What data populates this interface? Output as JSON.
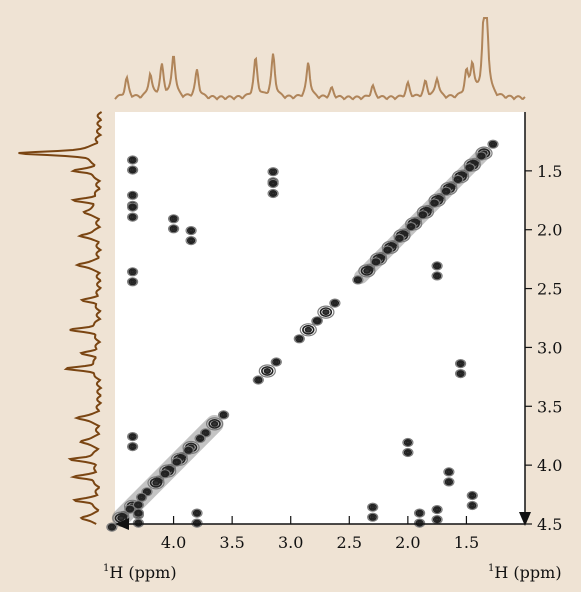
{
  "chart_data": {
    "type": "heatmap",
    "subtype": "2D NMR COSY contour spectrum with 1D projections",
    "title": "",
    "xlabel": "1H (ppm)",
    "ylabel": "1H (ppm)",
    "x_axis": {
      "label_super": "1",
      "label_main": "H (ppm)",
      "range_ppm": [
        4.5,
        1.0
      ],
      "reversed": true,
      "ticks": [
        4.0,
        3.5,
        3.0,
        2.5,
        2.0,
        1.5
      ],
      "tick_labels": [
        "4.0",
        "3.5",
        "3.0",
        "2.5",
        "2.0",
        "1.5"
      ]
    },
    "y_axis": {
      "label_super": "1",
      "label_main": "H (ppm)",
      "range_ppm": [
        1.0,
        4.5
      ],
      "position": "right",
      "ticks": [
        1.5,
        2.0,
        2.5,
        3.0,
        3.5,
        4.0,
        4.5
      ],
      "tick_labels": [
        "1.5",
        "2.0",
        "2.5",
        "3.0",
        "3.5",
        "4.0",
        "4.5"
      ]
    },
    "grid": false,
    "colors": {
      "background": "#efe3d4",
      "plot_area": "#ffffff",
      "top_projection": "#b0855a",
      "left_projection": "#7a4512",
      "contours": "#222222",
      "axis": "#111111"
    },
    "diagonal_peaks_ppm": [
      1.35,
      1.45,
      1.55,
      1.65,
      1.75,
      1.85,
      1.95,
      2.05,
      2.15,
      2.25,
      2.35,
      2.7,
      2.85,
      3.2,
      3.65,
      3.85,
      3.95,
      4.05,
      4.15,
      4.35,
      4.45
    ],
    "cross_peaks_ppm": [
      [
        4.35,
        1.45
      ],
      [
        4.35,
        1.75
      ],
      [
        4.35,
        1.85
      ],
      [
        4.35,
        2.4
      ],
      [
        4.35,
        3.8
      ],
      [
        4.3,
        4.38
      ],
      [
        4.3,
        4.45
      ],
      [
        3.8,
        4.45
      ],
      [
        4.0,
        1.95
      ],
      [
        3.85,
        2.05
      ],
      [
        3.15,
        1.55
      ],
      [
        3.15,
        1.65
      ],
      [
        1.45,
        4.3
      ],
      [
        1.75,
        4.42
      ],
      [
        1.9,
        4.45
      ],
      [
        2.3,
        4.4
      ],
      [
        1.55,
        3.18
      ],
      [
        1.75,
        2.35
      ],
      [
        2.0,
        3.85
      ],
      [
        1.65,
        4.1
      ]
    ],
    "projection_top_peaks_ppm": [
      {
        "ppm": 1.33,
        "intensity": 1.0
      },
      {
        "ppm": 1.35,
        "intensity": 0.8
      },
      {
        "ppm": 1.45,
        "intensity": 0.4
      },
      {
        "ppm": 1.5,
        "intensity": 0.3
      },
      {
        "ppm": 1.75,
        "intensity": 0.25
      },
      {
        "ppm": 1.85,
        "intensity": 0.2
      },
      {
        "ppm": 2.0,
        "intensity": 0.18
      },
      {
        "ppm": 2.3,
        "intensity": 0.15
      },
      {
        "ppm": 2.65,
        "intensity": 0.12
      },
      {
        "ppm": 2.85,
        "intensity": 0.45
      },
      {
        "ppm": 3.15,
        "intensity": 0.55
      },
      {
        "ppm": 3.3,
        "intensity": 0.5
      },
      {
        "ppm": 3.8,
        "intensity": 0.35
      },
      {
        "ppm": 4.0,
        "intensity": 0.55
      },
      {
        "ppm": 4.1,
        "intensity": 0.4
      },
      {
        "ppm": 4.2,
        "intensity": 0.3
      },
      {
        "ppm": 4.4,
        "intensity": 0.25
      }
    ],
    "projection_left_peaks_ppm": [
      {
        "ppm": 1.35,
        "intensity": 1.0
      },
      {
        "ppm": 1.5,
        "intensity": 0.3
      },
      {
        "ppm": 1.75,
        "intensity": 0.3
      },
      {
        "ppm": 1.85,
        "intensity": 0.2
      },
      {
        "ppm": 2.05,
        "intensity": 0.25
      },
      {
        "ppm": 2.3,
        "intensity": 0.3
      },
      {
        "ppm": 2.6,
        "intensity": 0.2
      },
      {
        "ppm": 2.85,
        "intensity": 0.35
      },
      {
        "ppm": 3.05,
        "intensity": 0.2
      },
      {
        "ppm": 3.18,
        "intensity": 0.4
      },
      {
        "ppm": 3.6,
        "intensity": 0.3
      },
      {
        "ppm": 3.8,
        "intensity": 0.25
      },
      {
        "ppm": 3.95,
        "intensity": 0.35
      },
      {
        "ppm": 4.1,
        "intensity": 0.3
      },
      {
        "ppm": 4.3,
        "intensity": 0.3
      },
      {
        "ppm": 4.45,
        "intensity": 0.25
      }
    ]
  }
}
